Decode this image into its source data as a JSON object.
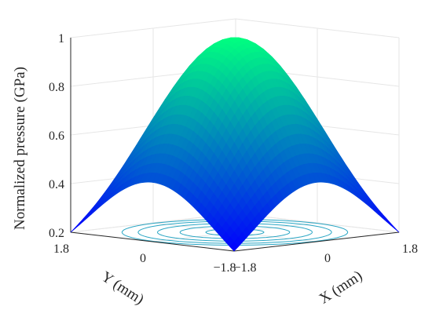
{
  "chart_data": {
    "type": "surface",
    "title": "",
    "xlabel": "X (mm)",
    "ylabel": "Y (mm)",
    "zlabel": "Normalized pressure (GPa)",
    "xlim": [
      -1.8,
      1.8
    ],
    "ylim": [
      -1.8,
      1.8
    ],
    "zlim": [
      0.2,
      1
    ],
    "x_ticks": [
      {
        "value": -1.8,
        "label": "−1.8"
      },
      {
        "value": 0,
        "label": "0"
      },
      {
        "value": 1.8,
        "label": "1.8"
      }
    ],
    "y_ticks": [
      {
        "value": -1.8,
        "label": "−1.8"
      },
      {
        "value": 0,
        "label": "0"
      },
      {
        "value": 1.8,
        "label": "1.8"
      }
    ],
    "z_ticks": [
      {
        "value": 0.2,
        "label": "0.2"
      },
      {
        "value": 0.4,
        "label": "0.4"
      },
      {
        "value": 0.6,
        "label": "0.6"
      },
      {
        "value": 0.8,
        "label": "0.8"
      },
      {
        "value": 1,
        "label": "1"
      }
    ],
    "grid": true,
    "surface": {
      "shape": "gaussian",
      "peak_value": 1.0,
      "peak_at": [
        0,
        0
      ],
      "corner_value": 0.2,
      "edge_midpoint_value": 0.37,
      "colormap": "winter"
    },
    "contours": {
      "plane_z": 0.2,
      "radii_mm": [
        0.45,
        0.85,
        1.2,
        1.5,
        1.75
      ]
    },
    "colors": {
      "low": "#0000ff",
      "high": "#00ff80",
      "contour": "#2aa6c4",
      "axis": "#262626",
      "grid": "#e6e6e6"
    }
  }
}
